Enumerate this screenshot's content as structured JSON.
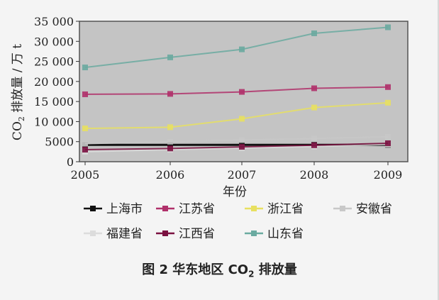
{
  "chart_data": {
    "type": "line",
    "xlabel": "年份",
    "ylabel": "CO2 排放量 / 万 t",
    "ylabel_main": "CO",
    "ylabel_sub": "2",
    "ylabel_rest": " 排放量 / 万 t",
    "ylim": [
      0,
      35000
    ],
    "yticks": [
      "0",
      "5000",
      "10 000",
      "15 000",
      "20 000",
      "25 000",
      "30 000",
      "35 000"
    ],
    "categories": [
      "2005",
      "2006",
      "2007",
      "2008",
      "2009"
    ],
    "series": [
      {
        "name": "上海市",
        "color": "#111111",
        "values": [
          4200,
          4200,
          4200,
          4200,
          4200
        ]
      },
      {
        "name": "江苏省",
        "color": "#b0306a",
        "values": [
          16800,
          16900,
          17400,
          18300,
          18600
        ]
      },
      {
        "name": "浙江省",
        "color": "#e8e060",
        "values": [
          8300,
          8600,
          10700,
          13500,
          14700
        ]
      },
      {
        "name": "安徽省",
        "color": "#c8c8c8",
        "values": [
          4500,
          5000,
          5400,
          5800,
          6200
        ]
      },
      {
        "name": "福建省",
        "color": "#dcdcdc",
        "values": [
          2500,
          3000,
          3400,
          3800,
          4300
        ]
      },
      {
        "name": "江西省",
        "color": "#7a1040",
        "values": [
          3000,
          3300,
          3700,
          4100,
          4600
        ]
      },
      {
        "name": "山东省",
        "color": "#6aaaa0",
        "values": [
          23500,
          26000,
          28000,
          32000,
          33500
        ]
      }
    ],
    "grid": false,
    "legend_position": "bottom"
  },
  "caption": {
    "prefix": "图 2  华东地区 CO",
    "sub": "2",
    "suffix": " 排放量"
  }
}
